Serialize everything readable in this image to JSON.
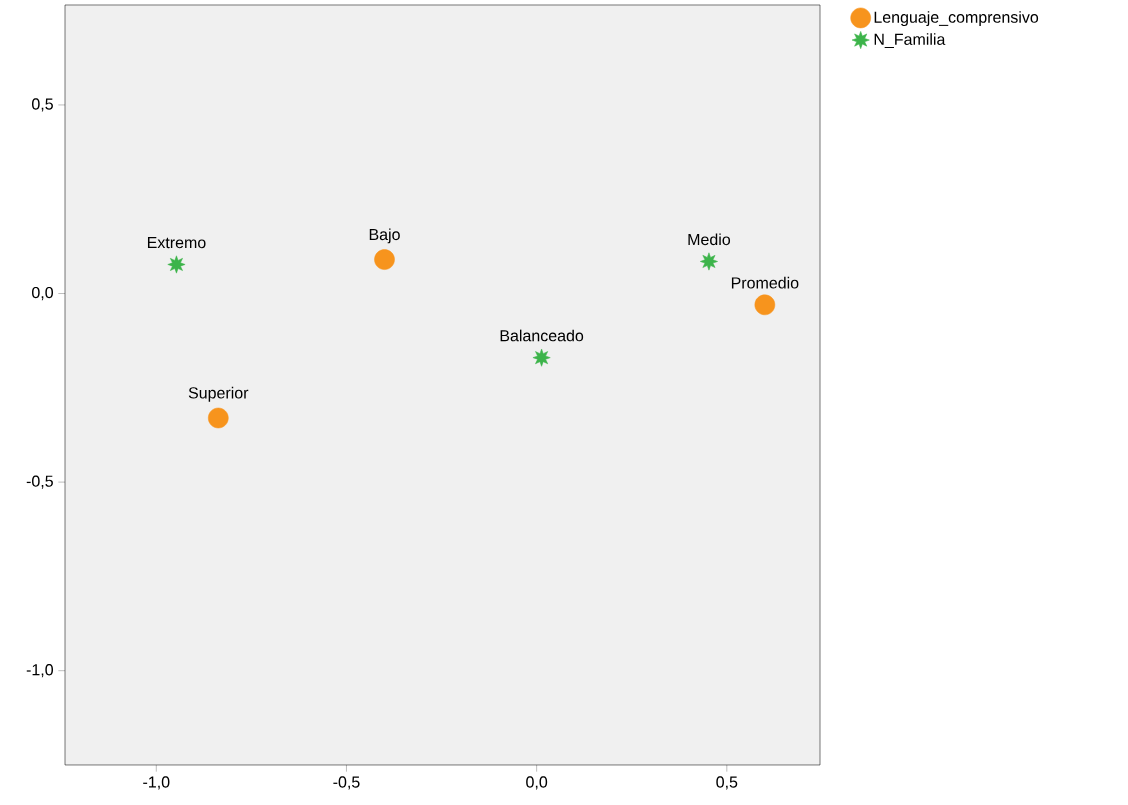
{
  "chart_data": {
    "type": "scatter",
    "series": [
      {
        "name": "Lenguaje_comprensivo",
        "color": "#f7941d",
        "marker": "circle",
        "x": [
          -0.4,
          -0.837,
          0.6
        ],
        "values": [
          0.09,
          -0.33,
          -0.03
        ]
      },
      {
        "name": "N_Familia",
        "color": "#3cb44a",
        "marker": "star",
        "x": [
          -0.947,
          0.013,
          0.453
        ],
        "values": [
          0.077,
          -0.17,
          0.085
        ]
      }
    ],
    "annotations": [
      {
        "text": "Bajo",
        "x": -0.4,
        "y": 0.09
      },
      {
        "text": "Superior",
        "x": -0.837,
        "y": -0.33
      },
      {
        "text": "Promedio",
        "x": 0.6,
        "y": -0.03
      },
      {
        "text": "Extremo",
        "x": -0.947,
        "y": 0.077
      },
      {
        "text": "Balanceado",
        "x": 0.013,
        "y": -0.17
      },
      {
        "text": "Medio",
        "x": 0.453,
        "y": 0.085
      }
    ],
    "xlim": [
      -1.24,
      0.745
    ],
    "ylim": [
      -1.25,
      0.765
    ],
    "xticks": [
      {
        "value": -1.0,
        "label": "-1,0"
      },
      {
        "value": -0.5,
        "label": "-0,5"
      },
      {
        "value": 0.0,
        "label": "0,0"
      },
      {
        "value": 0.5,
        "label": "0,5"
      }
    ],
    "yticks": [
      {
        "value": -1.0,
        "label": "-1,0"
      },
      {
        "value": -0.5,
        "label": "-0,5"
      },
      {
        "value": 0.0,
        "label": "0,0"
      },
      {
        "value": 0.5,
        "label": "0,5"
      }
    ],
    "grid": false,
    "legend": "top right"
  }
}
